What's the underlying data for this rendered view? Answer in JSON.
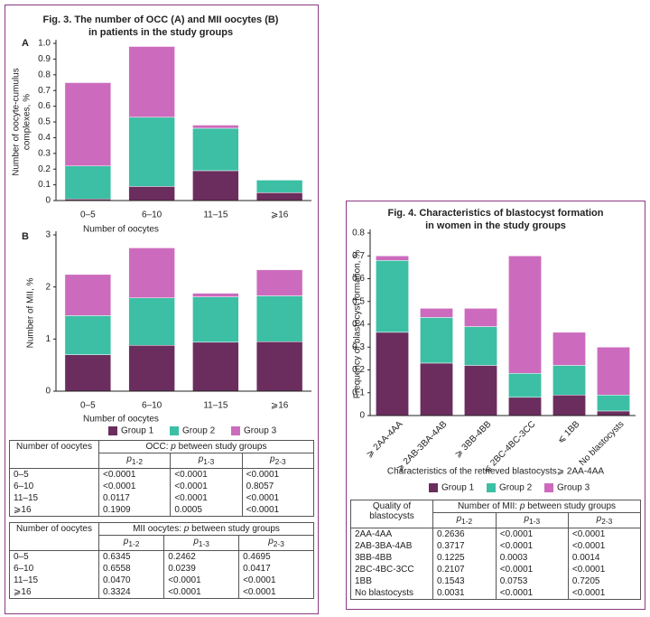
{
  "figures": [
    {
      "title_lines": [
        "Fig. 3. The number of OCC (A) and MII oocytes (B)",
        "in patients in the study groups"
      ]
    },
    {
      "title_lines": [
        "Fig. 4. Characteristics of blastocyst formation",
        "in women in the study groups"
      ]
    }
  ],
  "chart_data": [
    {
      "type": "bar",
      "stacked": true,
      "panel": "A",
      "ylabel": [
        "Number of oocyte-cumulus",
        "complexes, %"
      ],
      "xlabel": "Number of oocytes",
      "categories": [
        "0–5",
        "6–10",
        "11–15",
        "⩾16"
      ],
      "series": [
        {
          "color": "#6b2d5e",
          "values": [
            0.01,
            0.09,
            0.19,
            0.05
          ]
        },
        {
          "color": "#3cbfa4",
          "values": [
            0.21,
            0.44,
            0.27,
            0.08
          ]
        },
        {
          "color": "#cc6bbd",
          "values": [
            0.53,
            0.45,
            0.02,
            0
          ]
        }
      ],
      "ylim": [
        0,
        1
      ],
      "yticks": [
        0,
        0.1,
        0.2,
        0.3,
        0.4,
        0.5,
        0.6,
        0.7,
        0.8,
        0.9,
        {
          "value": 1,
          "label": "1.0"
        }
      ]
    },
    {
      "type": "bar",
      "stacked": true,
      "panel": "B",
      "ylabel": [
        "Number of MII, %"
      ],
      "xlabel": "Number of oocytes",
      "categories": [
        "0–5",
        "6–10",
        "11–15",
        "⩾16"
      ],
      "series": [
        {
          "name": "Group 1",
          "color": "#6b2d5e",
          "values": [
            0.7,
            0.88,
            0.94,
            0.95
          ]
        },
        {
          "name": "Group 2",
          "color": "#3cbfa4",
          "values": [
            0.75,
            0.91,
            0.87,
            0.88
          ]
        },
        {
          "name": "Group 3",
          "color": "#cc6bbd",
          "values": [
            0.79,
            0.96,
            0.07,
            0.5
          ]
        }
      ],
      "ylim": [
        0,
        3
      ],
      "yticks": [
        0,
        1,
        2,
        3
      ],
      "legend": "bottom"
    },
    {
      "type": "bar",
      "stacked": true,
      "ylabel": [
        "Frequency of blastocyst formation, %"
      ],
      "xlabel": "Characteristics of the retrieved blastocysts⩾ 2AA-4AA",
      "categories": [
        "⩾ 2AA-4AA",
        "⩾ 2AB-3BA-4AB",
        "⩾ 3BB-4BB",
        "⩽ 2BC-4BC-3CC",
        "⩽ 1BB",
        "No blastocysts"
      ],
      "series": [
        {
          "name": "Group 1",
          "color": "#6b2d5e",
          "values": [
            0.365,
            0.23,
            0.22,
            0.08,
            0.09,
            0.02
          ]
        },
        {
          "name": "Group 2",
          "color": "#3cbfa4",
          "values": [
            0.315,
            0.2,
            0.17,
            0.105,
            0.13,
            0.07
          ]
        },
        {
          "name": "Group 3",
          "color": "#cc6bbd",
          "values": [
            0.02,
            0.04,
            0.08,
            0.515,
            0.145,
            0.21
          ]
        }
      ],
      "ylim": [
        0,
        0.8
      ],
      "yticks": [
        0,
        0.1,
        0.2,
        0.3,
        0.4,
        0.5,
        0.6,
        0.7,
        0.8
      ],
      "legend": "bottom"
    }
  ],
  "tables": [
    {
      "row_header": "Number of oocytes",
      "group_header": [
        "OCC: ",
        "p",
        " between study groups"
      ],
      "columns": [
        {
          "base": "p",
          "sub": "1-2"
        },
        {
          "base": "p",
          "sub": "1-3"
        },
        {
          "base": "p",
          "sub": "2-3"
        }
      ],
      "rows": [
        [
          "0–5",
          "<0.0001",
          "<0.0001",
          "<0.0001"
        ],
        [
          "6–10",
          "<0.0001",
          "<0.0001",
          "0.8057"
        ],
        [
          "11–15",
          "0.0117",
          "<0.0001",
          "<0.0001"
        ],
        [
          "⩾16",
          "0.1909",
          "0.0005",
          "<0.0001"
        ]
      ]
    },
    {
      "row_header": "Number of oocytes",
      "group_header": [
        "MII oocytes: ",
        "p",
        " between study groups"
      ],
      "columns": [
        {
          "base": "p",
          "sub": "1-2"
        },
        {
          "base": "p",
          "sub": "1-3"
        },
        {
          "base": "p",
          "sub": "2-3"
        }
      ],
      "rows": [
        [
          "0–5",
          "0.6345",
          "0.2462",
          "0.4695"
        ],
        [
          "6–10",
          "0.6558",
          "0.0239",
          "0.0417"
        ],
        [
          "11–15",
          "0.0470",
          "<0.0001",
          "<0.0001"
        ],
        [
          "⩾16",
          "0.3324",
          "<0.0001",
          "<0.0001"
        ]
      ]
    },
    {
      "row_header": "Quality of blastocysts",
      "group_header": [
        "Number of MII: ",
        "p",
        " between study groups"
      ],
      "columns": [
        {
          "base": "p",
          "sub": "1-2"
        },
        {
          "base": "p",
          "sub": "1-3"
        },
        {
          "base": "p",
          "sub": "2-3"
        }
      ],
      "rows": [
        [
          "2AA-4AA",
          "0.2636",
          "<0.0001",
          "<0.0001"
        ],
        [
          "2AB-3BA-4AB",
          "0.3717",
          "<0.0001",
          "<0.0001"
        ],
        [
          "3BB-4BB",
          "0.1225",
          "0.0003",
          "0.0014"
        ],
        [
          "2BC-4BC-3CC",
          "0.2107",
          "<0.0001",
          "<0.0001"
        ],
        [
          "1BB",
          "0.1543",
          "0.0753",
          "0.7205"
        ],
        [
          "No blastocysts",
          "0.0031",
          "<0.0001",
          "<0.0001"
        ]
      ]
    }
  ]
}
